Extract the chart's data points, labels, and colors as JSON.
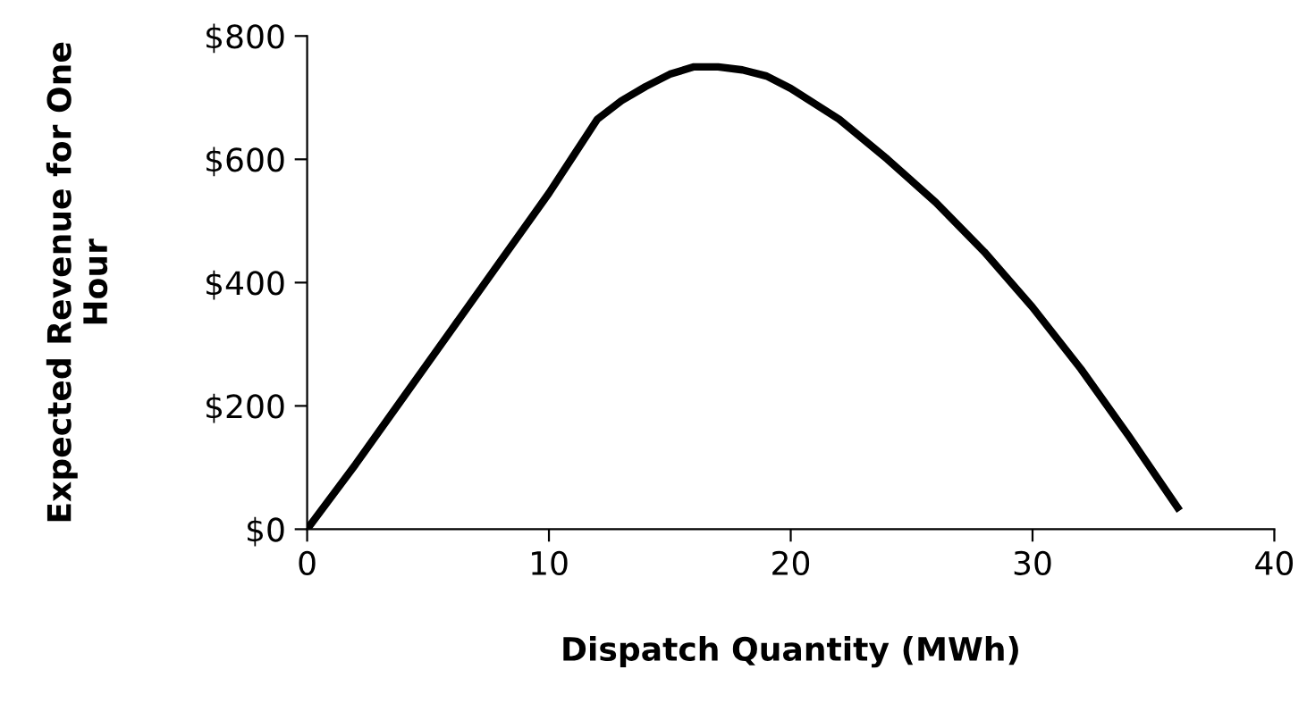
{
  "chart_data": {
    "type": "line",
    "xlabel": "Dispatch Quantity (MWh)",
    "ylabel": "Expected Revenue for One Hour",
    "x": [
      0,
      2,
      4,
      6,
      8,
      10,
      11,
      12,
      13,
      14,
      15,
      16,
      17,
      18,
      19,
      20,
      22,
      24,
      26,
      28,
      30,
      32,
      34,
      36
    ],
    "series": [
      {
        "color": "#000000",
        "values": [
          0,
          105,
          215,
          325,
          435,
          545,
          605,
          665,
          695,
          718,
          738,
          750,
          750,
          745,
          735,
          715,
          665,
          600,
          530,
          450,
          360,
          260,
          150,
          35
        ]
      }
    ],
    "xlim": [
      0,
      40
    ],
    "xticks": [
      0,
      10,
      20,
      30,
      40
    ],
    "ylim": [
      0,
      800
    ],
    "yticks": [
      {
        "value": 0,
        "label": "$0"
      },
      {
        "value": 200,
        "label": "$200"
      },
      {
        "value": 400,
        "label": "$400"
      },
      {
        "value": 600,
        "label": "$600"
      },
      {
        "value": 800,
        "label": "$800"
      }
    ],
    "grid": false,
    "legend": false,
    "marker": "none",
    "line_style": "solid"
  }
}
